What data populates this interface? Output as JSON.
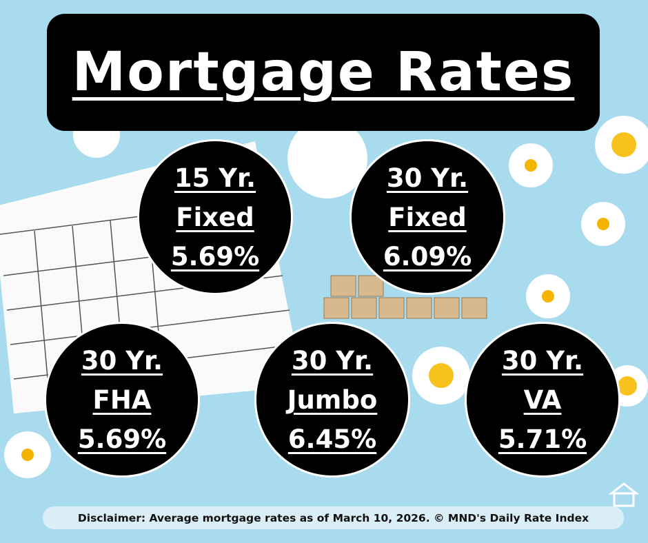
{
  "header": {
    "title": "Mortgage Rates"
  },
  "rates": [
    {
      "term": "15 Yr.",
      "product": "Fixed",
      "rate": "5.69%"
    },
    {
      "term": "30 Yr.",
      "product": "Fixed",
      "rate": "6.09%"
    },
    {
      "term": "30 Yr.",
      "product": "FHA",
      "rate": "5.69%"
    },
    {
      "term": "30 Yr.",
      "product": "Jumbo",
      "rate": "6.45%"
    },
    {
      "term": "30 Yr.",
      "product": "VA",
      "rate": "5.71%"
    }
  ],
  "footer": {
    "disclaimer": "Disclaimer: Average mortgage rates as of March 10, 2026. © MND's Daily Rate Index"
  }
}
